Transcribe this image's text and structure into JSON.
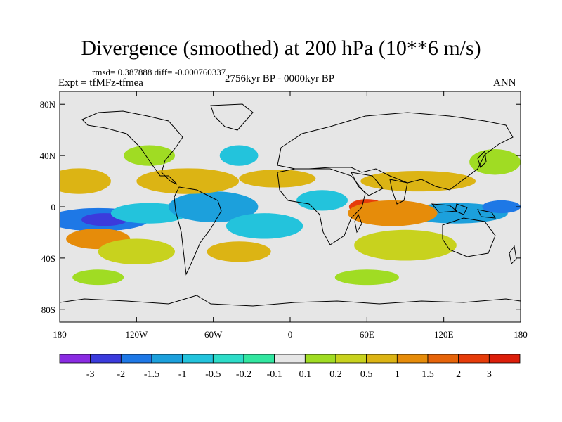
{
  "title": "Divergence (smoothed) at 200 hPa (10**6 m/s)",
  "stats": "rmsd= 0.387888 diff= -0.000760337",
  "experiment": "Expt = tfMFz-tfmea",
  "period": "2756kyr BP - 0000kyr BP",
  "season": "ANN",
  "lat_ticks": [
    {
      "label": "80N",
      "lat": 80
    },
    {
      "label": "40N",
      "lat": 40
    },
    {
      "label": "0",
      "lat": 0
    },
    {
      "label": "40S",
      "lat": -40
    },
    {
      "label": "80S",
      "lat": -80
    }
  ],
  "lon_ticks": [
    {
      "label": "180",
      "lon": -180
    },
    {
      "label": "120W",
      "lon": -120
    },
    {
      "label": "60W",
      "lon": -60
    },
    {
      "label": "0",
      "lon": 0
    },
    {
      "label": "60E",
      "lon": 60
    },
    {
      "label": "120E",
      "lon": 120
    },
    {
      "label": "180",
      "lon": 180
    }
  ],
  "colorbar": {
    "colors": [
      "#8a2be2",
      "#3b3bdc",
      "#1e78e6",
      "#1ca0dc",
      "#23c3dc",
      "#2ddcc8",
      "#32e6a0",
      "#e6e6e6",
      "#a0dc23",
      "#c8d21e",
      "#dcb414",
      "#e68c0a",
      "#e6640a",
      "#e63c0a",
      "#dc1e0a"
    ],
    "labels": [
      "-3",
      "-2",
      "-1.5",
      "-1",
      "-0.5",
      "-0.2",
      "-0.1",
      "0.1",
      "0.2",
      "0.5",
      "1",
      "1.5",
      "2",
      "3"
    ]
  },
  "field_blobs": [
    {
      "lon": -150,
      "lat": -10,
      "rlon": 40,
      "rlat": 9,
      "color": "#1e78e6"
    },
    {
      "lon": -145,
      "lat": -10,
      "rlon": 18,
      "rlat": 5,
      "color": "#3b3bdc"
    },
    {
      "lon": -110,
      "lat": -5,
      "rlon": 30,
      "rlat": 8,
      "color": "#23c3dc"
    },
    {
      "lon": -60,
      "lat": 0,
      "rlon": 35,
      "rlat": 12,
      "color": "#1ca0dc"
    },
    {
      "lon": -20,
      "lat": -15,
      "rlon": 30,
      "rlat": 10,
      "color": "#23c3dc"
    },
    {
      "lon": 25,
      "lat": 5,
      "rlon": 20,
      "rlat": 8,
      "color": "#23c3dc"
    },
    {
      "lon": 130,
      "lat": -5,
      "rlon": 40,
      "rlat": 8,
      "color": "#1ca0dc"
    },
    {
      "lon": 165,
      "lat": 0,
      "rlon": 15,
      "rlat": 5,
      "color": "#1e78e6"
    },
    {
      "lon": 60,
      "lat": 0,
      "rlon": 14,
      "rlat": 6,
      "color": "#e63c0a"
    },
    {
      "lon": 80,
      "lat": -5,
      "rlon": 35,
      "rlat": 10,
      "color": "#e68c0a"
    },
    {
      "lon": -165,
      "lat": 20,
      "rlon": 25,
      "rlat": 10,
      "color": "#dcb414"
    },
    {
      "lon": -150,
      "lat": -25,
      "rlon": 25,
      "rlat": 8,
      "color": "#e68c0a"
    },
    {
      "lon": -80,
      "lat": 20,
      "rlon": 40,
      "rlat": 10,
      "color": "#dcb414"
    },
    {
      "lon": -10,
      "lat": 22,
      "rlon": 30,
      "rlat": 7,
      "color": "#dcb414"
    },
    {
      "lon": 100,
      "lat": 20,
      "rlon": 45,
      "rlat": 8,
      "color": "#dcb414"
    },
    {
      "lon": -120,
      "lat": -35,
      "rlon": 30,
      "rlat": 10,
      "color": "#c8d21e"
    },
    {
      "lon": -40,
      "lat": -35,
      "rlon": 25,
      "rlat": 8,
      "color": "#dcb414"
    },
    {
      "lon": 90,
      "lat": -30,
      "rlon": 40,
      "rlat": 12,
      "color": "#c8d21e"
    },
    {
      "lon": 160,
      "lat": 35,
      "rlon": 20,
      "rlat": 10,
      "color": "#a0dc23"
    },
    {
      "lon": -110,
      "lat": 40,
      "rlon": 20,
      "rlat": 8,
      "color": "#a0dc23"
    },
    {
      "lon": -40,
      "lat": 40,
      "rlon": 15,
      "rlat": 8,
      "color": "#23c3dc"
    },
    {
      "lon": 60,
      "lat": -55,
      "rlon": 25,
      "rlat": 6,
      "color": "#a0dc23"
    },
    {
      "lon": -150,
      "lat": -55,
      "rlon": 20,
      "rlat": 6,
      "color": "#a0dc23"
    }
  ]
}
